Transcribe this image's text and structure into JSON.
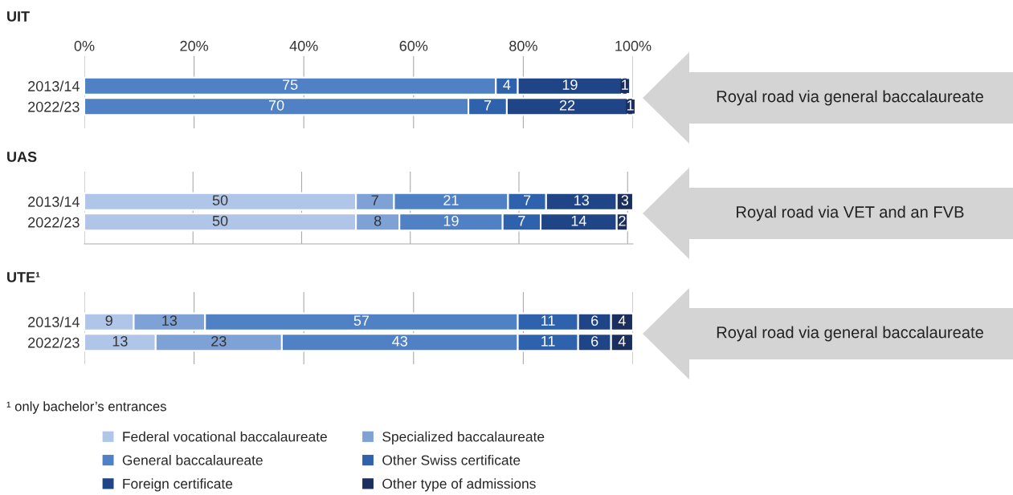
{
  "chart_data": [
    {
      "type": "bar",
      "orientation": "horizontal",
      "stacked": true,
      "title": "UIT",
      "categories": [
        "2013/14",
        "2022/23"
      ],
      "xlim": [
        0,
        100
      ],
      "xticks": [
        {
          "value": 0,
          "label": "0%"
        },
        {
          "value": 20,
          "label": "20%"
        },
        {
          "value": 40,
          "label": "40%"
        },
        {
          "value": 60,
          "label": "60%"
        },
        {
          "value": 80,
          "label": "80%"
        },
        {
          "value": 100,
          "label": "100%"
        }
      ],
      "grid": "x",
      "data_labels": true,
      "legend": "bottom",
      "annotations": [
        "Royal road via general baccalaureate"
      ],
      "series": [
        {
          "name": "General baccalaureate",
          "color": "#4f81c4",
          "values": [
            75,
            70
          ]
        },
        {
          "name": "Other Swiss certificate",
          "color": "#2e62ad",
          "values": [
            4,
            7
          ]
        },
        {
          "name": "Foreign certificate",
          "color": "#1f4586",
          "values": [
            19,
            22
          ]
        },
        {
          "name": "Other type of admissions",
          "color": "#1b2f5e",
          "values": [
            1,
            1
          ]
        }
      ]
    },
    {
      "type": "bar",
      "orientation": "horizontal",
      "stacked": true,
      "title": "UAS",
      "categories": [
        "2013/14",
        "2022/23"
      ],
      "xlim": [
        0,
        101
      ],
      "xticks": [
        {
          "value": 0,
          "label": null
        },
        {
          "value": 20,
          "label": null
        },
        {
          "value": 40,
          "label": null
        },
        {
          "value": 60,
          "label": null
        },
        {
          "value": 80,
          "label": null
        },
        {
          "value": 100,
          "label": null
        }
      ],
      "tick_labels": "y",
      "grid": "x",
      "data_labels": true,
      "legend": "bottom",
      "annotations": [
        "Royal road via VET and an FVB"
      ],
      "series": [
        {
          "name": "Federal vocational baccalaureate",
          "color": "#b0c6e8",
          "values": [
            50,
            50
          ]
        },
        {
          "name": "Specialized baccalaureate",
          "color": "#7fa2d6",
          "values": [
            7,
            8
          ]
        },
        {
          "name": "General baccalaureate",
          "color": "#4f81c4",
          "values": [
            21,
            19
          ]
        },
        {
          "name": "Other Swiss certificate",
          "color": "#2e62ad",
          "values": [
            7,
            7
          ]
        },
        {
          "name": "Foreign certificate",
          "color": "#1f4586",
          "values": [
            13,
            14
          ]
        },
        {
          "name": "Other type of admissions",
          "color": "#1b2f5e",
          "values": [
            3,
            2
          ]
        }
      ]
    },
    {
      "type": "bar",
      "orientation": "horizontal",
      "stacked": true,
      "title": "UTE¹",
      "categories": [
        "2013/14",
        "2022/23"
      ],
      "xlim": [
        0,
        100
      ],
      "xticks": [
        {
          "value": 0,
          "label": null
        },
        {
          "value": 20,
          "label": null
        },
        {
          "value": 40,
          "label": null
        },
        {
          "value": 60,
          "label": null
        },
        {
          "value": 80,
          "label": null
        },
        {
          "value": 100,
          "label": null
        }
      ],
      "tick_labels": "y",
      "grid": "x",
      "data_labels": true,
      "legend": "bottom",
      "annotations": [
        "Royal road via general baccalaureate",
        "¹ only bachelor’s entrances"
      ],
      "series": [
        {
          "name": "Federal vocational baccalaureate",
          "color": "#b0c6e8",
          "values": [
            9,
            13
          ]
        },
        {
          "name": "Specialized baccalaureate",
          "color": "#7fa2d6",
          "values": [
            13,
            23
          ]
        },
        {
          "name": "General baccalaureate",
          "color": "#4f81c4",
          "values": [
            57,
            43
          ]
        },
        {
          "name": "Other Swiss certificate",
          "color": "#2e62ad",
          "values": [
            11,
            11
          ]
        },
        {
          "name": "Foreign certificate",
          "color": "#1f4586",
          "values": [
            6,
            6
          ]
        },
        {
          "name": "Other type of admissions",
          "color": "#1b2f5e",
          "values": [
            4,
            4
          ]
        }
      ]
    }
  ]
}
